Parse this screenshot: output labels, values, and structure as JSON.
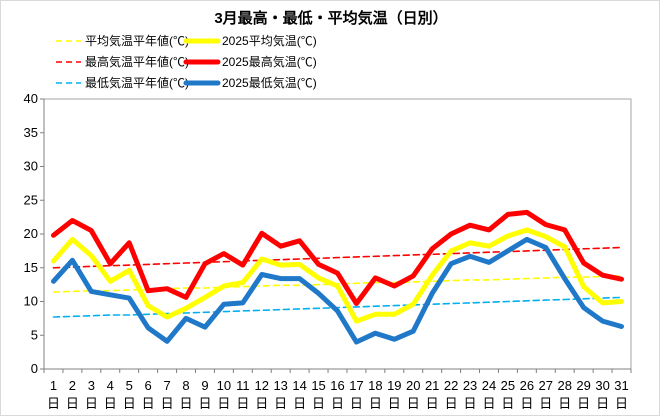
{
  "chart_data": {
    "type": "line",
    "title": "3月最高・最低・平均気温（日別）",
    "x_tick_labels": [
      "1",
      "2",
      "3",
      "4",
      "5",
      "6",
      "7",
      "8",
      "9",
      "10",
      "11",
      "12",
      "13",
      "14",
      "15",
      "16",
      "17",
      "18",
      "19",
      "20",
      "21",
      "22",
      "23",
      "24",
      "25",
      "26",
      "27",
      "28",
      "29",
      "30",
      "31"
    ],
    "x_tick_sublabel": "日",
    "ylim": [
      0,
      40
    ],
    "yticks": [
      0,
      5,
      10,
      15,
      20,
      25,
      30,
      35,
      40
    ],
    "grid": false,
    "legend_position": "top-left",
    "series": [
      {
        "name": "平均気温平年値(℃)",
        "style": "dashed",
        "color": "#ffff00",
        "values": [
          11.4,
          11.5,
          11.6,
          11.6,
          11.7,
          11.8,
          11.9,
          12.0,
          12.0,
          12.1,
          12.2,
          12.3,
          12.4,
          12.4,
          12.5,
          12.6,
          12.7,
          12.8,
          12.8,
          12.9,
          13.0,
          13.1,
          13.2,
          13.2,
          13.3,
          13.4,
          13.5,
          13.6,
          13.6,
          13.7,
          13.8
        ]
      },
      {
        "name": "最高気温平年値(℃)",
        "style": "dashed",
        "color": "#ff0000",
        "values": [
          15.0,
          15.1,
          15.2,
          15.3,
          15.4,
          15.5,
          15.6,
          15.7,
          15.8,
          15.9,
          16.0,
          16.1,
          16.2,
          16.3,
          16.4,
          16.5,
          16.6,
          16.7,
          16.8,
          16.9,
          17.0,
          17.1,
          17.2,
          17.3,
          17.4,
          17.5,
          17.6,
          17.7,
          17.8,
          17.9,
          18.0
        ]
      },
      {
        "name": "最低気温平年値(℃)",
        "style": "dashed",
        "color": "#00b0f0",
        "values": [
          7.7,
          7.8,
          7.9,
          8.0,
          8.0,
          8.1,
          8.2,
          8.3,
          8.4,
          8.5,
          8.6,
          8.7,
          8.8,
          8.9,
          9.0,
          9.1,
          9.2,
          9.3,
          9.4,
          9.5,
          9.6,
          9.7,
          9.8,
          9.9,
          10.0,
          10.1,
          10.2,
          10.3,
          10.4,
          10.5,
          10.6
        ]
      },
      {
        "name": "2025平均気温(℃)",
        "style": "solid",
        "color": "#ffff00",
        "values": [
          16.0,
          19.2,
          16.8,
          13.0,
          14.6,
          9.4,
          7.7,
          9.0,
          10.6,
          12.3,
          12.8,
          16.3,
          15.4,
          15.5,
          13.5,
          12.3,
          7.1,
          8.1,
          8.1,
          9.6,
          13.9,
          17.5,
          18.7,
          18.2,
          19.7,
          20.6,
          19.6,
          18.1,
          12.2,
          9.8,
          10.0
        ]
      },
      {
        "name": "2025最高気温(℃)",
        "style": "solid",
        "color": "#ff0000",
        "values": [
          19.8,
          22.0,
          20.5,
          15.6,
          18.7,
          11.6,
          11.9,
          10.6,
          15.6,
          17.1,
          15.4,
          20.1,
          18.2,
          19.0,
          15.5,
          14.2,
          9.7,
          13.5,
          12.3,
          13.8,
          17.8,
          20.0,
          21.3,
          20.6,
          22.9,
          23.2,
          21.4,
          20.6,
          15.7,
          13.9,
          13.3
        ]
      },
      {
        "name": "2025最低気温(℃)",
        "style": "solid",
        "color": "#1f78c8",
        "values": [
          13.0,
          16.1,
          11.5,
          11.0,
          10.5,
          6.1,
          4.1,
          7.5,
          6.2,
          9.6,
          9.8,
          14.0,
          13.4,
          13.4,
          11.2,
          8.6,
          4.0,
          5.3,
          4.4,
          5.6,
          11.2,
          15.6,
          16.7,
          15.8,
          17.5,
          19.2,
          18.0,
          13.4,
          9.1,
          7.1,
          6.3
        ]
      }
    ]
  }
}
